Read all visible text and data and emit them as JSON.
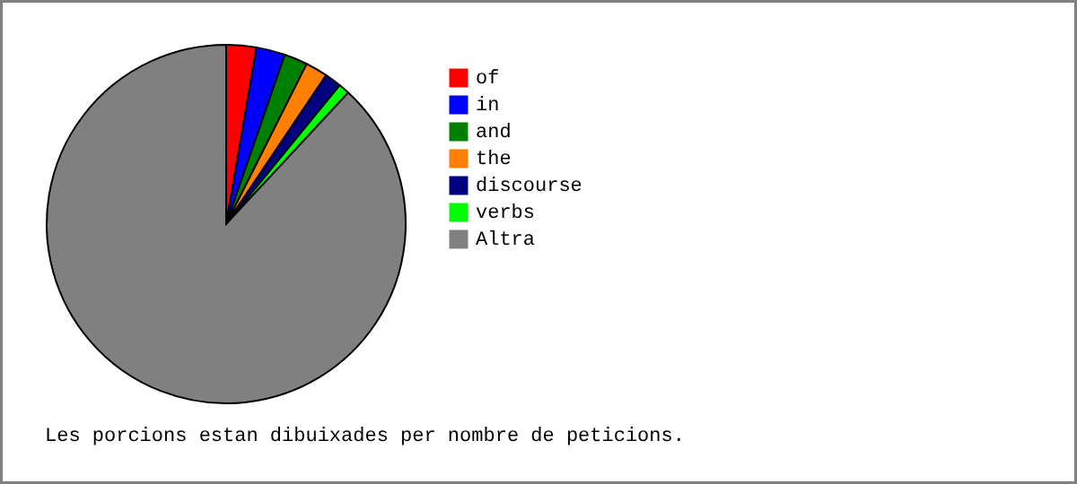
{
  "chart_data": {
    "type": "pie",
    "categories": [
      "of",
      "in",
      "and",
      "the",
      "discourse",
      "verbs",
      "Altra"
    ],
    "values": [
      2.7,
      2.6,
      2.1,
      2.0,
      1.5,
      1.0,
      88.1
    ],
    "colors": [
      "#ff0000",
      "#0000ff",
      "#008000",
      "#ff8000",
      "#000080",
      "#00ff00",
      "#808080"
    ],
    "legend": "right",
    "annotations": [
      "Les porcions estan dibuixades per nombre de peticions."
    ]
  }
}
